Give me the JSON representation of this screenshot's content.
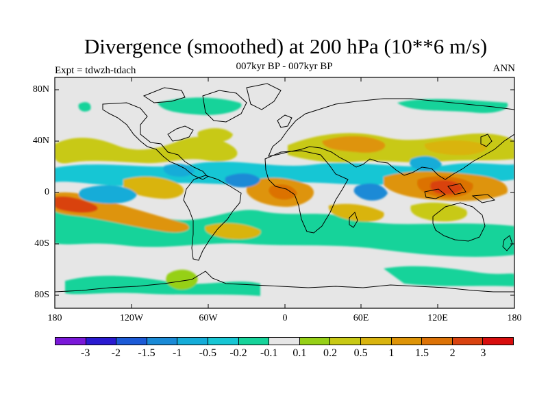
{
  "title": "Divergence (smoothed) at 200 hPa (10**6 m/s)",
  "subtitle": "007kyr BP - 007kyr BP",
  "left_label": "Expt = tdwzh-tdach",
  "right_label": "ANN",
  "lat_labels": [
    "80N",
    "40N",
    "0",
    "40S",
    "80S"
  ],
  "lon_labels": [
    "180",
    "120W",
    "60W",
    "0",
    "60E",
    "120E",
    "180"
  ],
  "colorbar": {
    "colors": [
      "#7a18d8",
      "#2a1ad0",
      "#1c5ad6",
      "#1a8ad6",
      "#15acd8",
      "#17c6d4",
      "#16d39a",
      "#e6e6e6",
      "#96d017",
      "#c8c915",
      "#d9b40f",
      "#de9407",
      "#dc7206",
      "#d94310",
      "#d80e0e"
    ],
    "labels": [
      "-3",
      "-2",
      "-1.5",
      "-1",
      "-0.5",
      "-0.2",
      "-0.1",
      "0.1",
      "0.2",
      "0.5",
      "1",
      "1.5",
      "2",
      "3"
    ]
  }
}
